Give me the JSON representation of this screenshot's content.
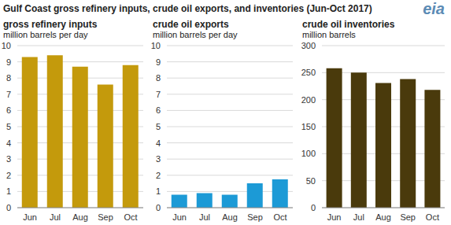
{
  "title": "Gulf Coast gross refinery inputs, crude oil exports, and inventories (Jun-Oct 2017)",
  "logo": "eia",
  "chart_data": [
    {
      "type": "bar",
      "title": "gross refinery inputs",
      "subtitle": "million barrels per day",
      "categories": [
        "Jun",
        "Jul",
        "Aug",
        "Sep",
        "Oct"
      ],
      "values": [
        9.3,
        9.4,
        8.7,
        7.6,
        8.8
      ],
      "color": "#c49a0c",
      "ylim": [
        0,
        10
      ],
      "yticks": [
        0,
        1,
        2,
        3,
        4,
        5,
        6,
        7,
        8,
        9,
        10
      ],
      "grid": true
    },
    {
      "type": "bar",
      "title": "crude oil exports",
      "subtitle": "million barrels per day",
      "categories": [
        "Jun",
        "Jul",
        "Aug",
        "Sep",
        "Oct"
      ],
      "values": [
        0.8,
        0.9,
        0.8,
        1.5,
        1.75
      ],
      "color": "#1c9ad6",
      "ylim": [
        0,
        10
      ],
      "yticks": [
        0,
        1,
        2,
        3,
        4,
        5,
        6,
        7,
        8,
        9,
        10
      ],
      "grid": true
    },
    {
      "type": "bar",
      "title": "crude oil inventories",
      "subtitle": "million barrels",
      "categories": [
        "Jun",
        "Jul",
        "Aug",
        "Sep",
        "Oct"
      ],
      "values": [
        258,
        250,
        231,
        238,
        218
      ],
      "color": "#4a3a0c",
      "ylim": [
        0,
        300
      ],
      "yticks": [
        0,
        50,
        100,
        150,
        200,
        250,
        300
      ],
      "grid": true
    }
  ]
}
